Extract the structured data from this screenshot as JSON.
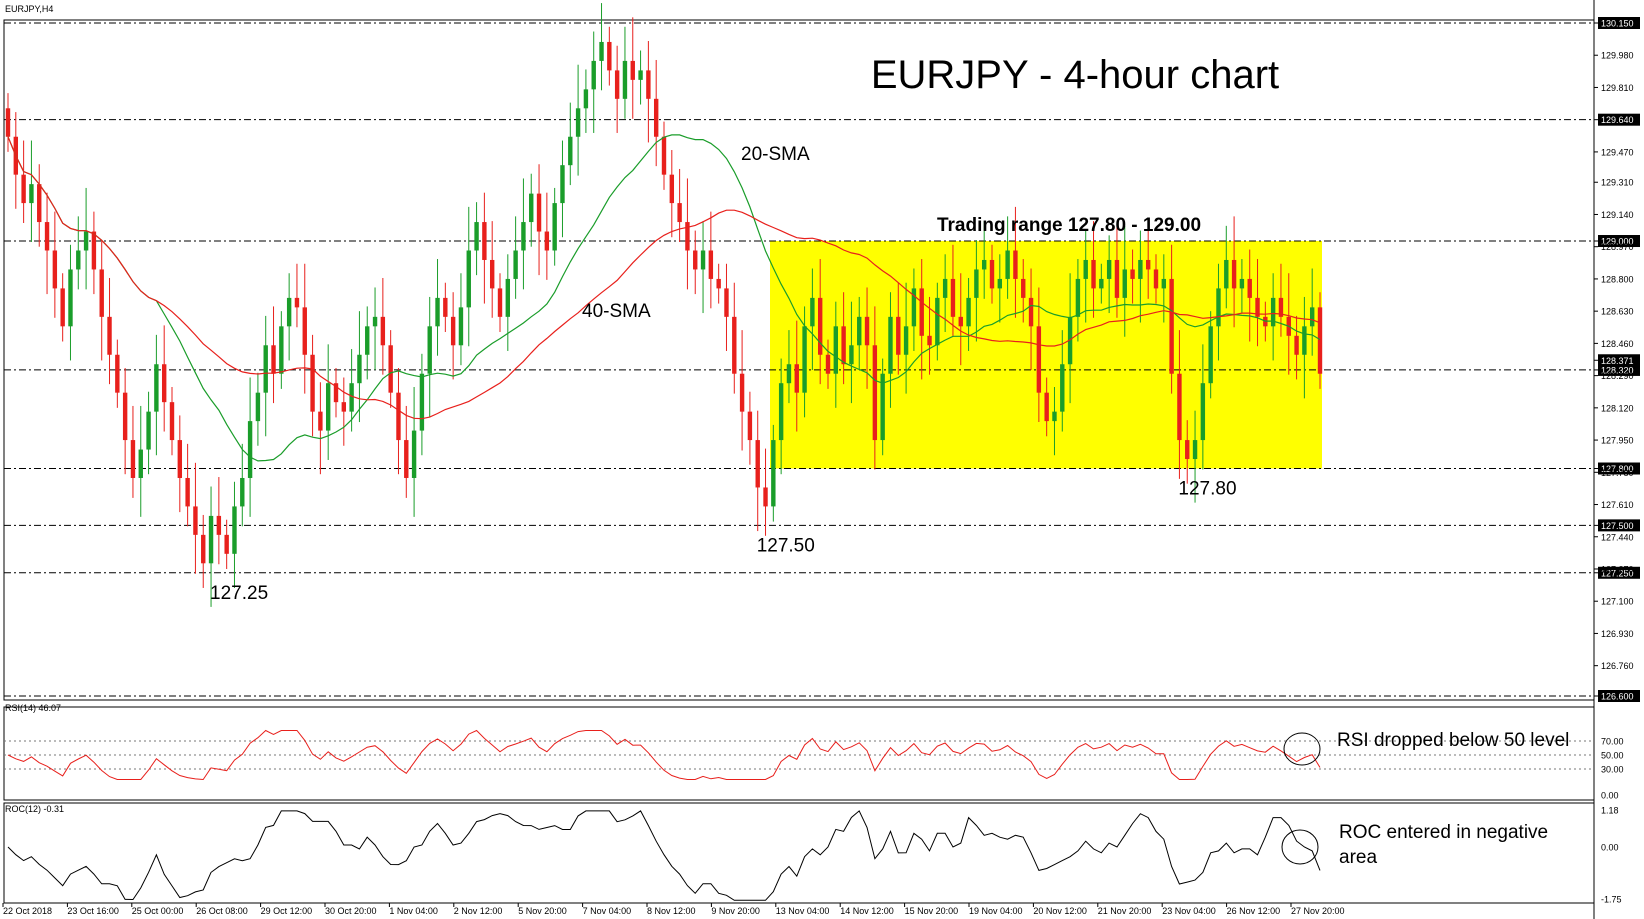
{
  "chart_data": {
    "type": "candlestick",
    "symbol_label": "EURJPY,H4",
    "title": "EURJPY - 4-hour chart",
    "y_range": [
      126.6,
      130.15
    ],
    "price_ticks": [
      "130.150",
      "129.980",
      "129.810",
      "129.640",
      "129.470",
      "129.310",
      "129.140",
      "129.000",
      "128.970",
      "128.800",
      "128.630",
      "128.460",
      "128.371",
      "128.320",
      "128.290",
      "128.120",
      "127.950",
      "127.800",
      "127.780",
      "127.610",
      "127.500",
      "127.440",
      "127.250",
      "127.270",
      "127.100",
      "126.930",
      "126.760",
      "126.600"
    ],
    "highlighted_ticks": [
      "130.150",
      "129.640",
      "129.000",
      "128.371",
      "128.320",
      "127.800",
      "127.500",
      "127.250",
      "126.600"
    ],
    "reference_lines": [
      130.15,
      129.64,
      129.0,
      128.32,
      127.8,
      127.5,
      127.25,
      126.6
    ],
    "trading_range": {
      "low": 127.8,
      "high": 129.0,
      "label": "Trading range 127.80 - 129.00",
      "color": "#ffff00"
    },
    "x_labels": [
      "22 Oct 2018",
      "23 Oct 16:00",
      "25 Oct 00:00",
      "26 Oct 08:00",
      "29 Oct 12:00",
      "30 Oct 20:00",
      "1 Nov 04:00",
      "2 Nov 12:00",
      "5 Nov 20:00",
      "7 Nov 04:00",
      "8 Nov 12:00",
      "9 Nov 20:00",
      "13 Nov 04:00",
      "14 Nov 12:00",
      "15 Nov 20:00",
      "19 Nov 04:00",
      "20 Nov 12:00",
      "21 Nov 20:00",
      "23 Nov 04:00",
      "26 Nov 12:00",
      "27 Nov 20:00"
    ],
    "close": [
      129.55,
      129.35,
      129.2,
      129.3,
      129.1,
      128.95,
      128.75,
      128.55,
      128.85,
      128.95,
      129.05,
      128.85,
      128.6,
      128.4,
      128.2,
      127.95,
      127.75,
      127.9,
      128.1,
      128.35,
      128.15,
      127.95,
      127.75,
      127.6,
      127.45,
      127.3,
      127.55,
      127.45,
      127.35,
      127.6,
      127.75,
      128.05,
      128.2,
      128.45,
      128.3,
      128.55,
      128.7,
      128.65,
      128.4,
      128.1,
      128.0,
      128.25,
      128.15,
      128.1,
      128.25,
      128.4,
      128.55,
      128.6,
      128.45,
      128.2,
      127.95,
      127.75,
      128.0,
      128.3,
      128.55,
      128.7,
      128.6,
      128.45,
      128.65,
      128.95,
      129.1,
      128.9,
      128.75,
      128.6,
      128.8,
      128.95,
      129.1,
      129.25,
      129.05,
      128.95,
      129.2,
      129.4,
      129.55,
      129.7,
      129.8,
      129.95,
      130.05,
      129.9,
      129.75,
      129.95,
      129.85,
      129.9,
      129.75,
      129.55,
      129.35,
      129.2,
      129.1,
      128.95,
      128.85,
      128.95,
      128.8,
      128.75,
      128.6,
      128.3,
      128.1,
      127.95,
      127.7,
      127.6,
      127.95,
      128.25,
      128.35,
      128.2,
      128.55,
      128.7,
      128.4,
      128.3,
      128.55,
      128.35,
      128.45,
      128.6,
      128.45,
      127.95,
      128.3,
      128.6,
      128.4,
      128.55,
      128.75,
      128.5,
      128.45,
      128.7,
      128.8,
      128.6,
      128.55,
      128.7,
      128.85,
      128.9,
      128.75,
      128.8,
      128.95,
      128.8,
      128.7,
      128.55,
      128.2,
      128.05,
      128.1,
      128.35,
      128.6,
      128.8,
      128.9,
      128.75,
      128.8,
      128.9,
      128.7,
      128.85,
      128.8,
      128.9,
      128.85,
      128.75,
      128.8,
      128.3,
      127.95,
      127.85,
      127.95,
      128.25,
      128.55,
      128.75,
      128.9,
      128.75,
      128.8,
      128.7,
      128.6,
      128.55,
      128.7,
      128.6,
      128.5,
      128.4,
      128.55,
      128.65,
      128.3
    ],
    "sma_20": {
      "label": "20-SMA",
      "color": "#1a9d2a"
    },
    "sma_40": {
      "label": "40-SMA",
      "color": "#e8201c"
    },
    "annotations": [
      {
        "text": "127.25",
        "at_index": 26,
        "price": 127.25
      },
      {
        "text": "127.50",
        "at_index": 96,
        "price": 127.5
      },
      {
        "text": "127.80",
        "at_index": 150,
        "price": 127.8
      }
    ],
    "rsi": {
      "label": "RSI(14) 46.07",
      "ticks": [
        "70.00",
        "50.00",
        "30.00",
        "0.00"
      ],
      "levels": [
        70,
        50,
        30
      ],
      "range": [
        0,
        100
      ],
      "color": "#e8201c",
      "note": "RSI dropped below 50 level"
    },
    "roc": {
      "label": "ROC(12) -0.31",
      "ticks": [
        "1.18",
        "0.00",
        "-1.75"
      ],
      "range": [
        -1.75,
        1.18
      ],
      "color": "#000000",
      "note_line1": "ROC entered in negative",
      "note_line2": "area"
    },
    "colors": {
      "bull": "#1a9d2a",
      "bear": "#e8201c",
      "grid": "#000000"
    }
  }
}
